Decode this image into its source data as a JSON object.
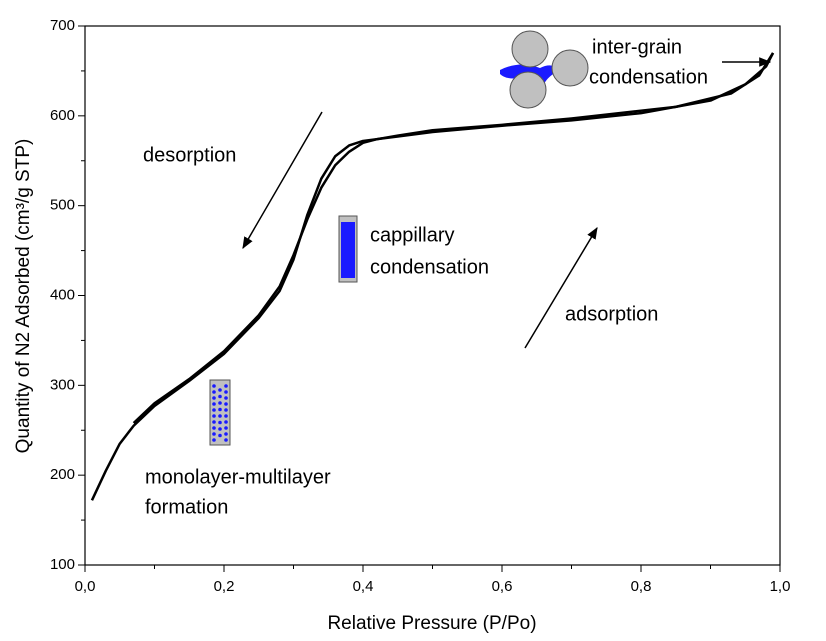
{
  "chart_data": {
    "type": "line",
    "xlabel": "Relative Pressure (P/Po)",
    "ylabel": "Quantity of N2 Adsorbed (cm³/g STP)",
    "xlim": [
      0,
      1
    ],
    "ylim": [
      100,
      700
    ],
    "xticks": [
      {
        "value": 0,
        "label": "0,0"
      },
      {
        "value": 0.2,
        "label": "0,2"
      },
      {
        "value": 0.4,
        "label": "0,4"
      },
      {
        "value": 0.6,
        "label": "0,6"
      },
      {
        "value": 0.8,
        "label": "0,8"
      },
      {
        "value": 1,
        "label": "1,0"
      }
    ],
    "yticks": [
      100,
      200,
      300,
      400,
      500,
      600,
      700
    ],
    "series": [
      {
        "color": "#000000",
        "x": [
          0.01,
          0.03,
          0.05,
          0.07,
          0.1,
          0.15,
          0.2,
          0.25,
          0.28,
          0.3,
          0.32,
          0.34,
          0.36,
          0.38,
          0.4,
          0.45,
          0.5,
          0.6,
          0.7,
          0.8,
          0.9,
          0.95,
          0.98,
          0.99
        ],
        "values": [
          172,
          205,
          235,
          255,
          277,
          305,
          335,
          375,
          405,
          440,
          490,
          530,
          555,
          567,
          572,
          577,
          582,
          589,
          595,
          603,
          617,
          635,
          655,
          670
        ]
      },
      {
        "color": "#000000",
        "x": [
          0.99,
          0.97,
          0.93,
          0.85,
          0.7,
          0.6,
          0.5,
          0.45,
          0.42,
          0.4,
          0.38,
          0.36,
          0.34,
          0.32,
          0.3,
          0.28,
          0.25,
          0.2,
          0.15,
          0.1,
          0.07
        ],
        "values": [
          670,
          645,
          625,
          610,
          597,
          590,
          584,
          578,
          574,
          570,
          560,
          545,
          520,
          485,
          445,
          410,
          378,
          338,
          307,
          280,
          258
        ]
      }
    ],
    "annotations": [
      "desorption",
      "cappillary",
      "condensation",
      "adsorption",
      "inter-grain",
      "condensation",
      "monolayer-multilayer",
      "formation"
    ]
  }
}
